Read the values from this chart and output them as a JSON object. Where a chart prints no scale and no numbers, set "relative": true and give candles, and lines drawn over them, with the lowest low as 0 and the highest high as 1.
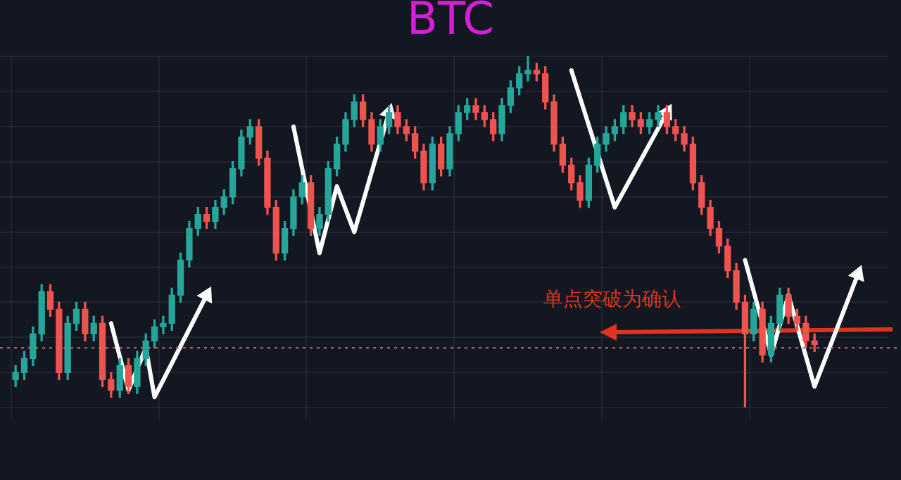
{
  "chart_data": {
    "type": "candlestick",
    "title": "BTC",
    "relative": true,
    "grid": true,
    "legend": false,
    "categories": [
      null,
      null,
      null,
      null,
      null,
      null,
      null,
      null,
      null,
      null,
      null,
      null,
      null,
      null,
      null,
      null,
      null,
      null,
      null,
      null,
      null,
      null,
      null,
      null,
      null,
      null,
      null,
      null,
      null,
      null,
      null,
      null,
      null,
      null,
      null,
      null,
      null,
      null,
      null,
      null,
      null,
      null,
      null,
      null,
      null,
      null,
      null,
      null,
      null,
      null,
      null,
      null,
      null,
      null,
      null,
      null,
      null,
      null,
      null,
      null,
      null,
      null,
      null,
      null,
      null,
      null,
      null,
      null,
      null,
      null,
      null,
      null,
      null,
      null,
      null,
      null,
      null,
      null,
      null,
      null,
      null,
      null,
      null,
      null,
      null,
      null,
      null,
      null,
      null,
      null,
      null,
      null,
      null,
      null,
      null,
      null,
      null,
      null,
      null,
      null,
      null
    ],
    "ohlc": [
      [
        0.08,
        0.12,
        0.06,
        0.1
      ],
      [
        0.1,
        0.16,
        0.08,
        0.14
      ],
      [
        0.14,
        0.23,
        0.12,
        0.21
      ],
      [
        0.21,
        0.35,
        0.19,
        0.33
      ],
      [
        0.33,
        0.35,
        0.26,
        0.28
      ],
      [
        0.28,
        0.3,
        0.08,
        0.1
      ],
      [
        0.1,
        0.26,
        0.08,
        0.24
      ],
      [
        0.24,
        0.3,
        0.22,
        0.28
      ],
      [
        0.28,
        0.3,
        0.19,
        0.21
      ],
      [
        0.21,
        0.26,
        0.19,
        0.24
      ],
      [
        0.24,
        0.26,
        0.06,
        0.08
      ],
      [
        0.08,
        0.1,
        0.03,
        0.05
      ],
      [
        0.05,
        0.14,
        0.03,
        0.12
      ],
      [
        0.12,
        0.14,
        0.04,
        0.06
      ],
      [
        0.06,
        0.16,
        0.04,
        0.14
      ],
      [
        0.14,
        0.21,
        0.12,
        0.19
      ],
      [
        0.19,
        0.25,
        0.17,
        0.23
      ],
      [
        0.23,
        0.26,
        0.21,
        0.24
      ],
      [
        0.24,
        0.34,
        0.22,
        0.32
      ],
      [
        0.32,
        0.44,
        0.3,
        0.42
      ],
      [
        0.42,
        0.53,
        0.4,
        0.51
      ],
      [
        0.51,
        0.57,
        0.49,
        0.55
      ],
      [
        0.55,
        0.57,
        0.51,
        0.53
      ],
      [
        0.53,
        0.59,
        0.51,
        0.57
      ],
      [
        0.57,
        0.62,
        0.55,
        0.6
      ],
      [
        0.6,
        0.7,
        0.58,
        0.68
      ],
      [
        0.68,
        0.79,
        0.66,
        0.77
      ],
      [
        0.77,
        0.82,
        0.75,
        0.8
      ],
      [
        0.8,
        0.82,
        0.69,
        0.71
      ],
      [
        0.71,
        0.73,
        0.55,
        0.57
      ],
      [
        0.57,
        0.59,
        0.42,
        0.44
      ],
      [
        0.44,
        0.53,
        0.42,
        0.51
      ],
      [
        0.51,
        0.62,
        0.49,
        0.6
      ],
      [
        0.6,
        0.66,
        0.58,
        0.64
      ],
      [
        0.64,
        0.66,
        0.49,
        0.51
      ],
      [
        0.51,
        0.57,
        0.49,
        0.55
      ],
      [
        0.55,
        0.7,
        0.53,
        0.68
      ],
      [
        0.68,
        0.77,
        0.66,
        0.75
      ],
      [
        0.75,
        0.84,
        0.73,
        0.82
      ],
      [
        0.82,
        0.89,
        0.8,
        0.87
      ],
      [
        0.87,
        0.89,
        0.8,
        0.82
      ],
      [
        0.82,
        0.84,
        0.73,
        0.75
      ],
      [
        0.75,
        0.82,
        0.73,
        0.8
      ],
      [
        0.8,
        0.86,
        0.78,
        0.84
      ],
      [
        0.84,
        0.86,
        0.78,
        0.8
      ],
      [
        0.8,
        0.82,
        0.76,
        0.78
      ],
      [
        0.78,
        0.8,
        0.71,
        0.73
      ],
      [
        0.73,
        0.75,
        0.62,
        0.64
      ],
      [
        0.64,
        0.77,
        0.62,
        0.75
      ],
      [
        0.75,
        0.77,
        0.66,
        0.68
      ],
      [
        0.68,
        0.8,
        0.66,
        0.78
      ],
      [
        0.78,
        0.86,
        0.76,
        0.84
      ],
      [
        0.84,
        0.88,
        0.82,
        0.86
      ],
      [
        0.86,
        0.88,
        0.82,
        0.84
      ],
      [
        0.84,
        0.86,
        0.8,
        0.82
      ],
      [
        0.82,
        0.84,
        0.76,
        0.78
      ],
      [
        0.78,
        0.88,
        0.76,
        0.86
      ],
      [
        0.86,
        0.93,
        0.84,
        0.91
      ],
      [
        0.91,
        0.97,
        0.89,
        0.95
      ],
      [
        0.95,
        1,
        0.93,
        0.96
      ],
      [
        0.96,
        0.98,
        0.93,
        0.95
      ],
      [
        0.95,
        0.97,
        0.85,
        0.87
      ],
      [
        0.87,
        0.89,
        0.73,
        0.75
      ],
      [
        0.75,
        0.77,
        0.67,
        0.69
      ],
      [
        0.69,
        0.71,
        0.62,
        0.64
      ],
      [
        0.64,
        0.66,
        0.57,
        0.59
      ],
      [
        0.59,
        0.71,
        0.57,
        0.69
      ],
      [
        0.69,
        0.77,
        0.67,
        0.75
      ],
      [
        0.75,
        0.8,
        0.73,
        0.78
      ],
      [
        0.78,
        0.82,
        0.76,
        0.8
      ],
      [
        0.8,
        0.86,
        0.78,
        0.84
      ],
      [
        0.84,
        0.86,
        0.8,
        0.82
      ],
      [
        0.82,
        0.84,
        0.78,
        0.8
      ],
      [
        0.8,
        0.84,
        0.78,
        0.82
      ],
      [
        0.82,
        0.86,
        0.8,
        0.84
      ],
      [
        0.84,
        0.86,
        0.78,
        0.8
      ],
      [
        0.8,
        0.82,
        0.76,
        0.78
      ],
      [
        0.78,
        0.8,
        0.73,
        0.75
      ],
      [
        0.75,
        0.77,
        0.62,
        0.64
      ],
      [
        0.64,
        0.66,
        0.55,
        0.57
      ],
      [
        0.57,
        0.59,
        0.49,
        0.51
      ],
      [
        0.51,
        0.53,
        0.44,
        0.46
      ],
      [
        0.46,
        0.48,
        0.37,
        0.39
      ],
      [
        0.39,
        0.41,
        0.28,
        0.3
      ],
      [
        0.3,
        0.32,
        0,
        0.21
      ],
      [
        0.21,
        0.3,
        0.19,
        0.28
      ],
      [
        0.28,
        0.3,
        0.13,
        0.15
      ],
      [
        0.15,
        0.26,
        0.13,
        0.24
      ],
      [
        0.24,
        0.34,
        0.22,
        0.32
      ],
      [
        0.32,
        0.34,
        0.24,
        0.26
      ],
      [
        0.26,
        0.28,
        0.22,
        0.24
      ],
      [
        0.24,
        0.26,
        0.17,
        0.19
      ],
      [
        0.19,
        0.21,
        0.16,
        0.18
      ],
      null,
      null,
      null,
      null,
      null,
      null,
      null,
      null
    ],
    "series": [
      {
        "type": "line",
        "color": "#ffffff",
        "values": [
          null,
          null,
          null,
          null,
          null,
          null,
          null,
          null,
          null,
          null,
          null,
          0.24,
          null,
          0.05,
          null,
          0.17,
          0.03,
          null,
          null,
          null,
          null,
          null,
          0.32,
          null,
          null,
          null,
          null,
          null,
          null,
          null,
          null,
          null,
          null,
          null,
          null,
          null,
          null,
          null,
          null,
          null,
          null,
          null,
          null,
          null,
          null,
          null,
          null,
          null,
          null,
          null,
          null,
          null,
          null,
          null,
          null,
          null,
          null,
          null,
          null,
          null,
          null,
          null,
          null,
          null,
          null,
          null,
          null,
          null,
          null,
          null,
          null,
          null,
          null,
          null,
          null,
          null,
          null,
          null,
          null,
          null,
          null,
          null,
          null,
          null,
          null,
          null,
          null,
          null,
          null,
          null,
          null,
          null,
          null,
          null,
          null,
          null,
          null,
          null,
          null,
          null,
          null
        ]
      },
      {
        "type": "line",
        "color": "#ffffff",
        "values": [
          null,
          null,
          null,
          null,
          null,
          null,
          null,
          null,
          null,
          null,
          null,
          null,
          null,
          null,
          null,
          null,
          null,
          null,
          null,
          null,
          null,
          null,
          null,
          null,
          null,
          null,
          null,
          null,
          null,
          null,
          null,
          null,
          0.8,
          null,
          null,
          0.44,
          null,
          0.63,
          null,
          0.5,
          null,
          null,
          null,
          0.84,
          null,
          null,
          null,
          null,
          null,
          null,
          null,
          null,
          null,
          null,
          null,
          null,
          null,
          null,
          null,
          null,
          null,
          null,
          null,
          null,
          null,
          null,
          null,
          null,
          null,
          null,
          null,
          null,
          null,
          null,
          null,
          null,
          null,
          null,
          null,
          null,
          null,
          null,
          null,
          null,
          null,
          null,
          null,
          null,
          null,
          null,
          null,
          null,
          null,
          null,
          null,
          null,
          null,
          null,
          null,
          null,
          null
        ]
      },
      {
        "type": "line",
        "color": "#ffffff",
        "values": [
          null,
          null,
          null,
          null,
          null,
          null,
          null,
          null,
          null,
          null,
          null,
          null,
          null,
          null,
          null,
          null,
          null,
          null,
          null,
          null,
          null,
          null,
          null,
          null,
          null,
          null,
          null,
          null,
          null,
          null,
          null,
          null,
          null,
          null,
          null,
          null,
          null,
          null,
          null,
          null,
          null,
          null,
          null,
          null,
          null,
          null,
          null,
          null,
          null,
          null,
          null,
          null,
          null,
          null,
          null,
          null,
          null,
          null,
          null,
          null,
          null,
          null,
          null,
          null,
          0.96,
          null,
          null,
          null,
          null,
          0.57,
          null,
          null,
          null,
          null,
          null,
          0.84,
          null,
          null,
          null,
          null,
          null,
          null,
          null,
          null,
          null,
          null,
          null,
          null,
          null,
          null,
          null,
          null,
          null,
          null,
          null,
          null,
          null,
          null,
          null,
          null,
          null
        ]
      },
      {
        "type": "line",
        "color": "#ffffff",
        "values": [
          null,
          null,
          null,
          null,
          null,
          null,
          null,
          null,
          null,
          null,
          null,
          null,
          null,
          null,
          null,
          null,
          null,
          null,
          null,
          null,
          null,
          null,
          null,
          null,
          null,
          null,
          null,
          null,
          null,
          null,
          null,
          null,
          null,
          null,
          null,
          null,
          null,
          null,
          null,
          null,
          null,
          null,
          null,
          null,
          null,
          null,
          null,
          null,
          null,
          null,
          null,
          null,
          null,
          null,
          null,
          null,
          null,
          null,
          null,
          null,
          null,
          null,
          null,
          null,
          null,
          null,
          null,
          null,
          null,
          null,
          null,
          null,
          null,
          null,
          null,
          null,
          null,
          null,
          null,
          null,
          null,
          null,
          null,
          null,
          0.42,
          null,
          null,
          0.15,
          null,
          0.32,
          null,
          null,
          0.06,
          null,
          null,
          null,
          null,
          0.38,
          null,
          null,
          null
        ]
      }
    ],
    "ref_lines": [
      {
        "axis": "y",
        "value": 0.17,
        "color": "#c0707a",
        "line_style": "dotted"
      }
    ],
    "annotations": [
      "单点突破为确认"
    ]
  }
}
